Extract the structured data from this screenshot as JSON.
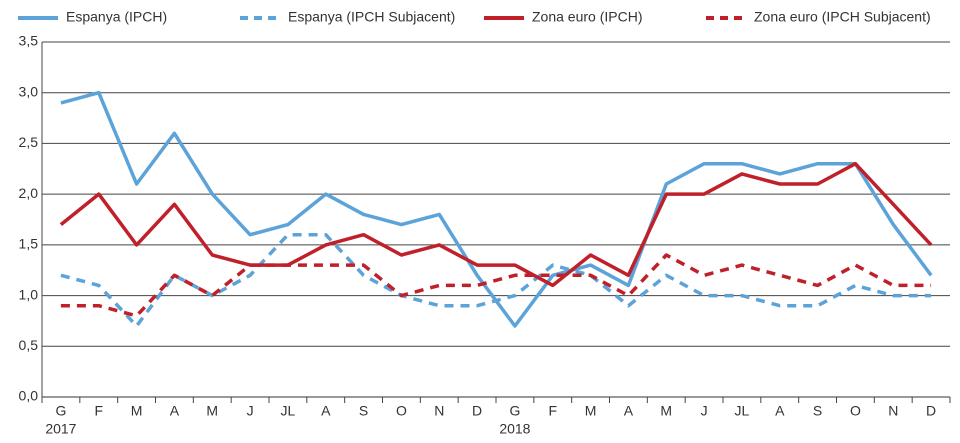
{
  "chart_data": {
    "type": "line",
    "categories": [
      "G",
      "F",
      "M",
      "A",
      "M",
      "J",
      "JL",
      "A",
      "S",
      "O",
      "N",
      "D",
      "G",
      "F",
      "M",
      "A",
      "M",
      "J",
      "JL",
      "A",
      "S",
      "O",
      "N",
      "D"
    ],
    "x_year_labels": [
      "2017",
      null,
      null,
      null,
      null,
      null,
      null,
      null,
      null,
      null,
      null,
      null,
      "2018",
      null,
      null,
      null,
      null,
      null,
      null,
      null,
      null,
      null,
      null,
      null
    ],
    "series": [
      {
        "name": "Espanya (IPCH)",
        "color": "#5ba3d9",
        "dashed": false,
        "values": [
          2.9,
          3.0,
          2.1,
          2.6,
          2.0,
          1.6,
          1.7,
          2.0,
          1.8,
          1.7,
          1.8,
          1.2,
          0.7,
          1.2,
          1.3,
          1.1,
          2.1,
          2.3,
          2.3,
          2.2,
          2.3,
          2.3,
          1.7,
          1.2
        ]
      },
      {
        "name": "Espanya (IPCH Subjacent)",
        "color": "#5ba3d9",
        "dashed": true,
        "values": [
          1.2,
          1.1,
          0.7,
          1.2,
          1.0,
          1.2,
          1.6,
          1.6,
          1.2,
          1.0,
          0.9,
          0.9,
          1.0,
          1.3,
          1.2,
          0.9,
          1.2,
          1.0,
          1.0,
          0.9,
          0.9,
          1.1,
          1.0,
          1.0
        ]
      },
      {
        "name": "Zona euro (IPCH)",
        "color": "#c0202a",
        "dashed": false,
        "values": [
          1.7,
          2.0,
          1.5,
          1.9,
          1.4,
          1.3,
          1.3,
          1.5,
          1.6,
          1.4,
          1.5,
          1.3,
          1.3,
          1.1,
          1.4,
          1.2,
          2.0,
          2.0,
          2.2,
          2.1,
          2.1,
          2.3,
          1.9,
          1.5
        ]
      },
      {
        "name": "Zona euro (IPCH Subjacent)",
        "color": "#c0202a",
        "dashed": true,
        "values": [
          0.9,
          0.9,
          0.8,
          1.2,
          1.0,
          1.3,
          1.3,
          1.3,
          1.3,
          1.0,
          1.1,
          1.1,
          1.2,
          1.2,
          1.2,
          1.0,
          1.4,
          1.2,
          1.3,
          1.2,
          1.1,
          1.3,
          1.1,
          1.1
        ]
      }
    ],
    "ylim": [
      0,
      3.5
    ],
    "yticks": [
      {
        "value": 0,
        "label": "0,0"
      },
      {
        "value": 0.5,
        "label": "0,5"
      },
      {
        "value": 1,
        "label": "1,0"
      },
      {
        "value": 1.5,
        "label": "1,5"
      },
      {
        "value": 2,
        "label": "2,0"
      },
      {
        "value": 2.5,
        "label": "2,5"
      },
      {
        "value": 3,
        "label": "3,0"
      },
      {
        "value": 3.5,
        "label": "3,5"
      }
    ],
    "grid": true,
    "legend": "top"
  }
}
